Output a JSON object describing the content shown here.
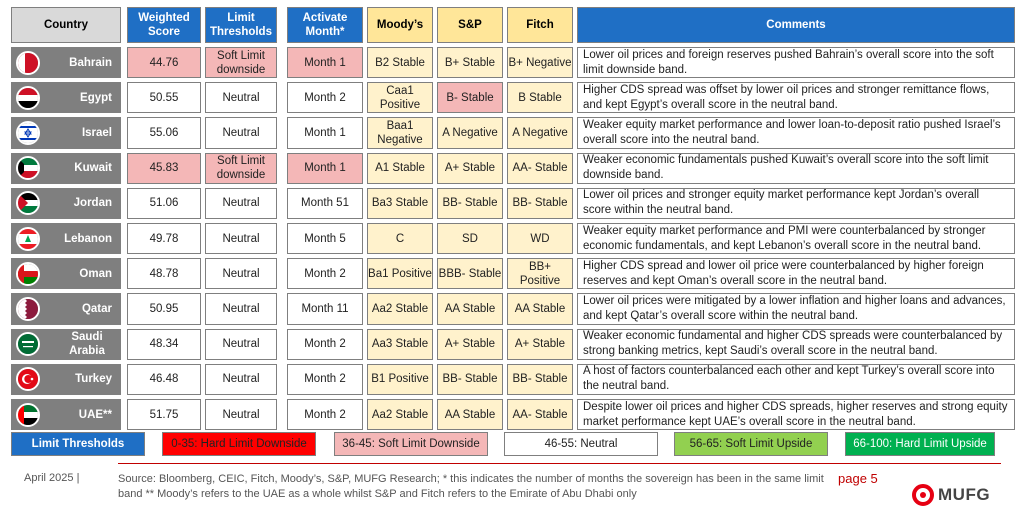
{
  "headers": {
    "country": "Country",
    "weighted_score": "Weighted Score",
    "limit_thresholds": "Limit Thresholds",
    "activate_month": "Activate Month*",
    "moodys": "Moody’s",
    "sp": "S&P",
    "fitch": "Fitch",
    "comments": "Comments"
  },
  "rows": [
    {
      "country": "Bahrain",
      "flag": "bahrain-flag-icon",
      "score": "44.76",
      "threshold": "Soft Limit downside",
      "month": "Month 1",
      "moodys": "B2 Stable",
      "sp": "B+ Stable",
      "fitch": "B+ Negative",
      "comment": "Lower oil prices and foreign reserves pushed Bahrain’s overall score into the soft limit downside band."
    },
    {
      "country": "Egypt",
      "flag": "egypt-flag-icon",
      "score": "50.55",
      "threshold": "Neutral",
      "month": "Month 2",
      "moodys": "Caa1 Positive",
      "sp": "B- Stable",
      "fitch": "B Stable",
      "comment": "Higher CDS spread was offset by lower oil prices and stronger remittance flows, and kept Egypt’s overall score in the neutral band."
    },
    {
      "country": "Israel",
      "flag": "israel-flag-icon",
      "score": "55.06",
      "threshold": "Neutral",
      "month": "Month 1",
      "moodys": "Baa1 Negative",
      "sp": "A Negative",
      "fitch": "A Negative",
      "comment": "Weaker equity market performance and lower loan-to-deposit ratio pushed Israel’s overall score into the neutral band."
    },
    {
      "country": "Kuwait",
      "flag": "kuwait-flag-icon",
      "score": "45.83",
      "threshold": "Soft Limit downside",
      "month": "Month 1",
      "moodys": "A1 Stable",
      "sp": "A+ Stable",
      "fitch": "AA- Stable",
      "comment": "Weaker economic fundamentals pushed Kuwait’s overall score into the soft limit downside band."
    },
    {
      "country": "Jordan",
      "flag": "jordan-flag-icon",
      "score": "51.06",
      "threshold": "Neutral",
      "month": "Month 51",
      "moodys": "Ba3 Stable",
      "sp": "BB- Stable",
      "fitch": "BB- Stable",
      "comment": "Lower oil prices and stronger equity market performance kept Jordan’s overall score within the neutral band."
    },
    {
      "country": "Lebanon",
      "flag": "lebanon-flag-icon",
      "score": "49.78",
      "threshold": "Neutral",
      "month": "Month 5",
      "moodys": "C",
      "sp": "SD",
      "fitch": "WD",
      "comment": "Weaker equity market performance and PMI were counterbalanced by stronger economic fundamentals, and kept Lebanon’s overall score in the neutral band."
    },
    {
      "country": "Oman",
      "flag": "oman-flag-icon",
      "score": "48.78",
      "threshold": "Neutral",
      "month": "Month 2",
      "moodys": "Ba1 Positive",
      "sp": "BBB- Stable",
      "fitch": "BB+ Positive",
      "comment": "Higher CDS spread and lower oil price were counterbalanced by higher foreign reserves and kept Oman’s overall score in the neutral band."
    },
    {
      "country": "Qatar",
      "flag": "qatar-flag-icon",
      "score": "50.95",
      "threshold": "Neutral",
      "month": "Month 11",
      "moodys": "Aa2 Stable",
      "sp": "AA Stable",
      "fitch": "AA Stable",
      "comment": "Lower oil prices were mitigated by a lower inflation and higher loans and advances, and kept Qatar’s overall score within the neutral band."
    },
    {
      "country": "Saudi Arabia",
      "flag": "saudi-flag-icon",
      "score": "48.34",
      "threshold": "Neutral",
      "month": "Month 2",
      "moodys": "Aa3 Stable",
      "sp": "A+ Stable",
      "fitch": "A+ Stable",
      "comment": "Weaker economic fundamental and higher CDS spreads were counterbalanced by strong banking metrics, kept Saudi’s overall score in the neutral band."
    },
    {
      "country": "Turkey",
      "flag": "turkey-flag-icon",
      "score": "46.48",
      "threshold": "Neutral",
      "month": "Month 2",
      "moodys": "B1 Positive",
      "sp": "BB- Stable",
      "fitch": "BB- Stable",
      "comment": "A host of factors counterbalanced each other and kept Turkey’s overall score into the neutral band."
    },
    {
      "country": "UAE**",
      "flag": "uae-flag-icon",
      "score": "51.75",
      "threshold": "Neutral",
      "month": "Month 2",
      "moodys": "Aa2 Stable",
      "sp": "AA Stable",
      "fitch": "AA- Stable",
      "comment": "Despite lower oil prices and higher CDS spreads, higher reserves and strong equity market performance kept UAE’s overall score in the neutral band."
    }
  ],
  "legend": {
    "title": "Limit Thresholds",
    "items": [
      {
        "label": "0-35: Hard Limit Downside",
        "color": "#ff0000"
      },
      {
        "label": "36-45: Soft Limit Downside",
        "color": "#f4b7b7"
      },
      {
        "label": "46-55: Neutral",
        "color": "#ffffff"
      },
      {
        "label": "56-65: Soft Limit Upside",
        "color": "#92d050"
      },
      {
        "label": "66-100: Hard Limit Upside",
        "color": "#00b050"
      }
    ]
  },
  "footer": {
    "date": "April 2025 |",
    "source": "Source: Bloomberg, CEIC, Fitch, Moody’s, S&P, MUFG Research; * this indicates the number of months the sovereign has been in the same limit band ** Moody’s refers to the UAE as a whole whilst S&P and Fitch refers to the Emirate of Abu Dhabi only",
    "page": "page 5",
    "logo_text": "MUFG"
  },
  "highlights": {
    "pink_cells": [
      "Bahrain.score",
      "Bahrain.threshold",
      "Bahrain.month",
      "Egypt.sp",
      "Kuwait.score",
      "Kuwait.threshold",
      "Kuwait.month"
    ]
  },
  "colors": {
    "header_blue": "#1f6fc5",
    "rating_header": "#ffe699",
    "rating_cell": "#fff2cc",
    "country_bg": "#7f7f7f",
    "pink": "#f4b7b7",
    "accent_red": "#c00000"
  }
}
